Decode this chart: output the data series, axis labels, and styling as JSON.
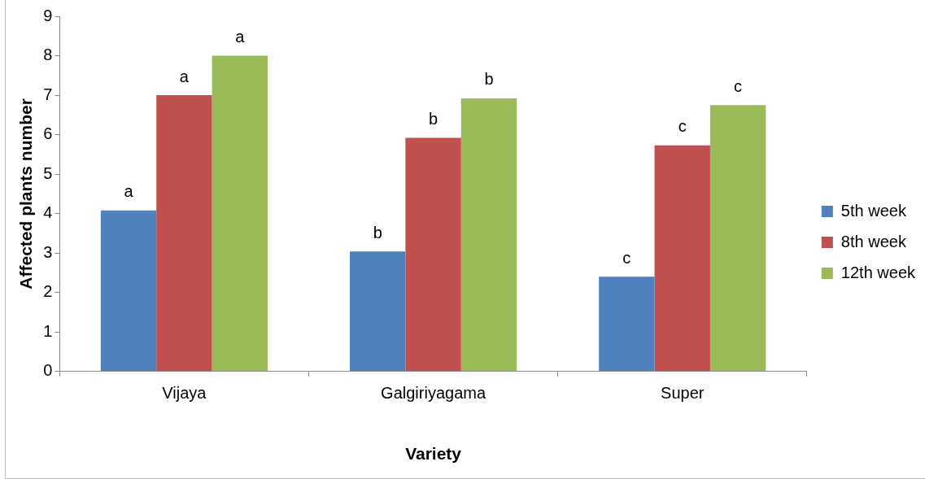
{
  "chart_data": {
    "type": "bar",
    "xlabel": "Variety",
    "ylabel": "Affected plants number",
    "categories": [
      "Vijaya",
      "Galgiriyagama",
      "Super"
    ],
    "series": [
      {
        "name": "5th week",
        "color": "#4f81bd",
        "values": [
          4.08,
          3.04,
          2.4
        ],
        "value_labels": [
          "a",
          "b",
          "c"
        ]
      },
      {
        "name": "8th week",
        "color": "#c0504d",
        "values": [
          7.0,
          5.92,
          5.73
        ],
        "value_labels": [
          "a",
          "b",
          "c"
        ]
      },
      {
        "name": "12th week",
        "color": "#9bbb59",
        "values": [
          8.0,
          6.92,
          6.75
        ],
        "value_labels": [
          "a",
          "b",
          "c"
        ]
      }
    ],
    "ylim": [
      0,
      9
    ],
    "yticks": [
      0,
      1,
      2,
      3,
      4,
      5,
      6,
      7,
      8,
      9
    ],
    "grid": false,
    "legend": "right"
  }
}
